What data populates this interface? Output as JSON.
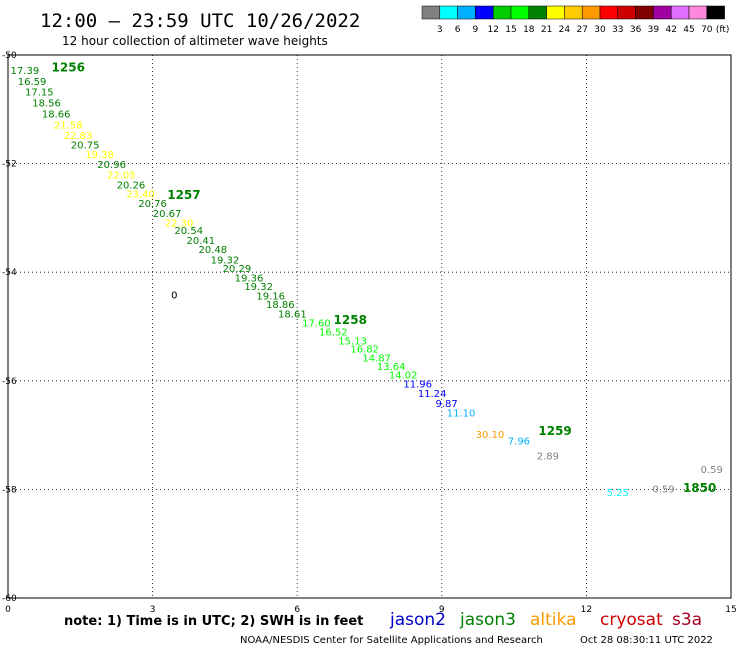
{
  "title": "12:00 – 23:59 UTC 10/26/2022",
  "subtitle": "12 hour collection of altimeter wave heights",
  "note": "note: 1) Time is in UTC; 2) SWH is in feet",
  "credit": "NOAA/NESDIS Center for Satellite Applications and Research",
  "timestamp": "Oct 28 08:30:11 UTC 2022",
  "satellites": [
    {
      "label": "jason2",
      "color": "#0000cc"
    },
    {
      "label": "jason3",
      "color": "#007f00"
    },
    {
      "label": "altika",
      "color": "#ff9900"
    },
    {
      "label": "cryosat",
      "color": "#cc0000"
    },
    {
      "label": "s3a",
      "color": "#a50021"
    }
  ],
  "color_scale": {
    "unit": "(ft)",
    "colors": [
      "#808080",
      "#00ffff",
      "#00b0ff",
      "#0000ff",
      "#00cc00",
      "#00ff00",
      "#008000",
      "#ffff00",
      "#ffcc00",
      "#ff9900",
      "#ff0000",
      "#cc0000",
      "#800000",
      "#a000a0",
      "#e070ff",
      "#ff88dd",
      "#000000"
    ],
    "labels": [
      "3",
      "6",
      "9",
      "12",
      "15",
      "18",
      "21",
      "24",
      "27",
      "30",
      "33",
      "36",
      "39",
      "42",
      "45",
      "70"
    ]
  },
  "chart_data": {
    "type": "scatter",
    "xlim": [
      0,
      15
    ],
    "ylim": [
      -60,
      -50
    ],
    "xticks": [
      "0",
      "3",
      "6",
      "9",
      "12",
      "15"
    ],
    "yticks": [
      "-50",
      "-52",
      "-54",
      "-56",
      "-58",
      "-60"
    ],
    "grid": true,
    "swh_points": [
      {
        "x": 0.35,
        "y": -50.35,
        "v": "17.39",
        "c": "#008000"
      },
      {
        "x": 0.5,
        "y": -50.55,
        "v": "16.59",
        "c": "#008000"
      },
      {
        "x": 0.65,
        "y": -50.75,
        "v": "17.15",
        "c": "#008000"
      },
      {
        "x": 0.8,
        "y": -50.95,
        "v": "18.56",
        "c": "#008000"
      },
      {
        "x": 1.0,
        "y": -51.15,
        "v": "18.66",
        "c": "#008000"
      },
      {
        "x": 1.25,
        "y": -51.35,
        "v": "21.58",
        "c": "#ffff00"
      },
      {
        "x": 1.45,
        "y": -51.55,
        "v": "22.83",
        "c": "#ffff00"
      },
      {
        "x": 1.6,
        "y": -51.72,
        "v": "20.75",
        "c": "#008000"
      },
      {
        "x": 1.9,
        "y": -51.9,
        "v": "19.38",
        "c": "#ffff00"
      },
      {
        "x": 2.15,
        "y": -52.08,
        "v": "20.96",
        "c": "#008000"
      },
      {
        "x": 2.35,
        "y": -52.27,
        "v": "22.05",
        "c": "#ffff00"
      },
      {
        "x": 2.55,
        "y": -52.46,
        "v": "20.26",
        "c": "#008000"
      },
      {
        "x": 2.75,
        "y": -52.62,
        "v": "23.40",
        "c": "#ffff00"
      },
      {
        "x": 3.0,
        "y": -52.8,
        "v": "20.76",
        "c": "#008000"
      },
      {
        "x": 3.3,
        "y": -52.98,
        "v": "20.67",
        "c": "#008000"
      },
      {
        "x": 3.55,
        "y": -53.16,
        "v": "22.30",
        "c": "#ffff00"
      },
      {
        "x": 3.75,
        "y": -53.3,
        "v": "20.54",
        "c": "#008000"
      },
      {
        "x": 4.0,
        "y": -53.48,
        "v": "20.41",
        "c": "#008000"
      },
      {
        "x": 4.25,
        "y": -53.65,
        "v": "20.48",
        "c": "#008000"
      },
      {
        "x": 4.5,
        "y": -53.84,
        "v": "19.32",
        "c": "#008000"
      },
      {
        "x": 4.75,
        "y": -54.0,
        "v": "20.29",
        "c": "#008000"
      },
      {
        "x": 5.0,
        "y": -54.17,
        "v": "19.36",
        "c": "#008000"
      },
      {
        "x": 5.2,
        "y": -54.33,
        "v": "19.32",
        "c": "#008000"
      },
      {
        "x": 5.45,
        "y": -54.5,
        "v": "19.16",
        "c": "#008000"
      },
      {
        "x": 5.65,
        "y": -54.66,
        "v": "18.86",
        "c": "#008000"
      },
      {
        "x": 5.9,
        "y": -54.83,
        "v": "18.61",
        "c": "#008000"
      },
      {
        "x": 6.4,
        "y": -55.0,
        "v": "17.60",
        "c": "#00ff00"
      },
      {
        "x": 6.75,
        "y": -55.17,
        "v": "16.52",
        "c": "#00ff00"
      },
      {
        "x": 7.15,
        "y": -55.33,
        "v": "15.13",
        "c": "#00ff00"
      },
      {
        "x": 7.4,
        "y": -55.48,
        "v": "16.82",
        "c": "#00ff00"
      },
      {
        "x": 7.65,
        "y": -55.64,
        "v": "14.87",
        "c": "#00ff00"
      },
      {
        "x": 7.95,
        "y": -55.8,
        "v": "13.64",
        "c": "#00ff00"
      },
      {
        "x": 8.2,
        "y": -55.96,
        "v": "14.02",
        "c": "#00ff00"
      },
      {
        "x": 8.5,
        "y": -56.12,
        "v": "11.96",
        "c": "#0000ff"
      },
      {
        "x": 8.8,
        "y": -56.3,
        "v": "11.24",
        "c": "#0000ff"
      },
      {
        "x": 9.1,
        "y": -56.48,
        "v": "9.87",
        "c": "#0000ff"
      },
      {
        "x": 9.4,
        "y": -56.66,
        "v": "11.10",
        "c": "#00b0ff"
      },
      {
        "x": 10.0,
        "y": -57.05,
        "v": "30.10",
        "c": "#ff9900"
      },
      {
        "x": 10.6,
        "y": -57.17,
        "v": "7.96",
        "c": "#00b0ff"
      },
      {
        "x": 11.2,
        "y": -57.45,
        "v": "2.89",
        "c": "#808080"
      },
      {
        "x": 14.6,
        "y": -57.7,
        "v": "0.59",
        "c": "#808080"
      },
      {
        "x": 12.65,
        "y": -58.12,
        "v": "5.25",
        "c": "#00ffff"
      },
      {
        "x": 13.6,
        "y": -58.06,
        "v": "0.59",
        "c": "#808080"
      },
      {
        "x": 3.45,
        "y": -54.48,
        "v": "0",
        "c": "#000000"
      }
    ],
    "time_labels": [
      {
        "x": 1.25,
        "y": -50.3,
        "t": "1256",
        "c": "#008000"
      },
      {
        "x": 3.65,
        "y": -52.65,
        "t": "1257",
        "c": "#008000"
      },
      {
        "x": 7.1,
        "y": -54.95,
        "t": "1258",
        "c": "#008000"
      },
      {
        "x": 11.35,
        "y": -57.0,
        "t": "1259",
        "c": "#008000"
      },
      {
        "x": 14.35,
        "y": -58.05,
        "t": "1850",
        "c": "#008000"
      }
    ]
  }
}
